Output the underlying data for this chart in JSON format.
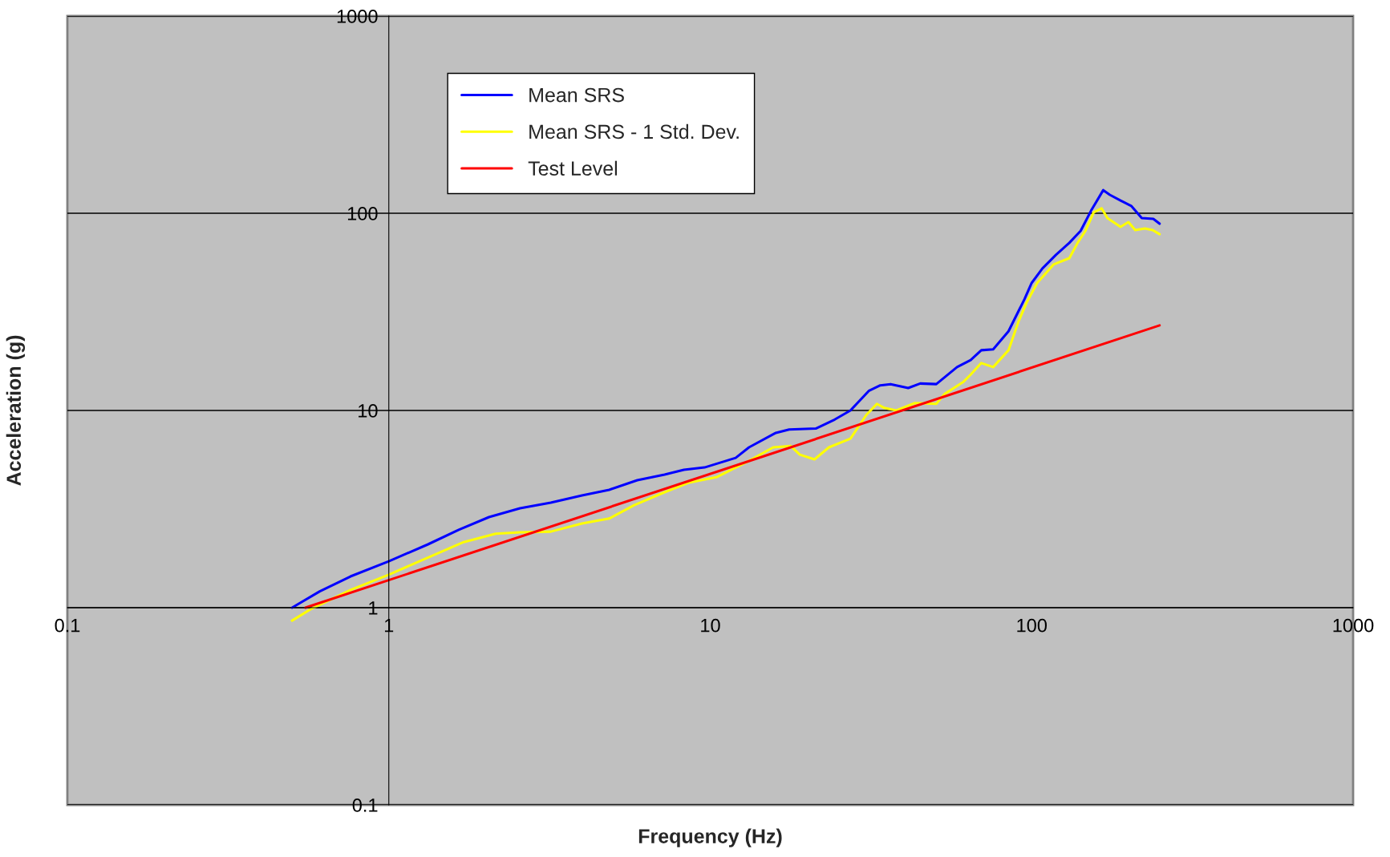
{
  "chart_data": {
    "type": "line",
    "xlabel": "Frequency (Hz)",
    "ylabel": "Acceleration (g)",
    "log": "xy",
    "grid": "y",
    "legend": "top left",
    "marker": "none",
    "line_style": "solid",
    "xlim": [
      0.1,
      1000
    ],
    "xticks": [
      0.1,
      1,
      10,
      100,
      1000
    ],
    "ylim": [
      0.1,
      1000
    ],
    "yticks": [
      0.1,
      1,
      10,
      100,
      1000
    ],
    "series": [
      {
        "name": "Mean SRS",
        "color": "#0000ff",
        "x": [
          0.5,
          0.61,
          0.76,
          1.0,
          1.32,
          1.65,
          2.05,
          2.56,
          3.19,
          3.99,
          4.85,
          5.93,
          7.21,
          8.28,
          9.6,
          12.0,
          13.2,
          16.0,
          17.6,
          21.3,
          24.4,
          27.3,
          31.2,
          33.8,
          36.4,
          41.3,
          45.0,
          50.5,
          58.6,
          64.6,
          69.7,
          75.9,
          84.7,
          95,
          100,
          108,
          119,
          131,
          142,
          153,
          167,
          175,
          189,
          204,
          220,
          239,
          250
        ],
        "values": [
          1.0,
          1.21,
          1.44,
          1.72,
          2.09,
          2.48,
          2.88,
          3.19,
          3.41,
          3.71,
          3.96,
          4.43,
          4.73,
          5.0,
          5.14,
          5.75,
          6.5,
          7.7,
          8.0,
          8.1,
          9.0,
          10.0,
          12.6,
          13.4,
          13.6,
          13.0,
          13.7,
          13.6,
          16.6,
          18.0,
          20.2,
          20.4,
          25.2,
          36.7,
          44.3,
          52.5,
          61.5,
          70.8,
          81.4,
          103,
          131,
          124,
          116,
          109,
          94.6,
          93.7,
          88.5
        ]
      },
      {
        "name": "Mean SRS - 1 Std. Dev.",
        "color": "#ffff00",
        "x": [
          0.5,
          0.57,
          0.76,
          1.0,
          1.38,
          1.71,
          2.15,
          2.56,
          3.19,
          3.99,
          4.85,
          5.8,
          7.21,
          8.6,
          10.5,
          13.2,
          15.7,
          17.8,
          19.0,
          21.1,
          23.4,
          27.3,
          30.6,
          33.0,
          34.8,
          37.9,
          43.3,
          50.5,
          53.5,
          61.1,
          64.6,
          69.7,
          75.9,
          84.7,
          91.2,
          96.6,
          104,
          117,
          131,
          139,
          147,
          156,
          165,
          172,
          189,
          200,
          210,
          225,
          238,
          250
        ],
        "values": [
          0.86,
          0.98,
          1.23,
          1.47,
          1.85,
          2.15,
          2.37,
          2.41,
          2.43,
          2.67,
          2.83,
          3.31,
          3.85,
          4.31,
          4.6,
          5.55,
          6.5,
          6.6,
          5.97,
          5.65,
          6.5,
          7.2,
          9.5,
          10.8,
          10.3,
          10.0,
          10.9,
          10.8,
          12.1,
          13.9,
          15.2,
          17.4,
          16.6,
          20.2,
          28.5,
          35.4,
          44.3,
          55,
          59.2,
          70.8,
          81.4,
          101,
          106,
          94.6,
          85.3,
          90.2,
          82.2,
          83.7,
          82.2,
          78.3
        ]
      },
      {
        "name": "Test Level",
        "color": "#ff0000",
        "x": [
          0.55,
          250
        ],
        "values": [
          1.0,
          27
        ]
      }
    ]
  }
}
